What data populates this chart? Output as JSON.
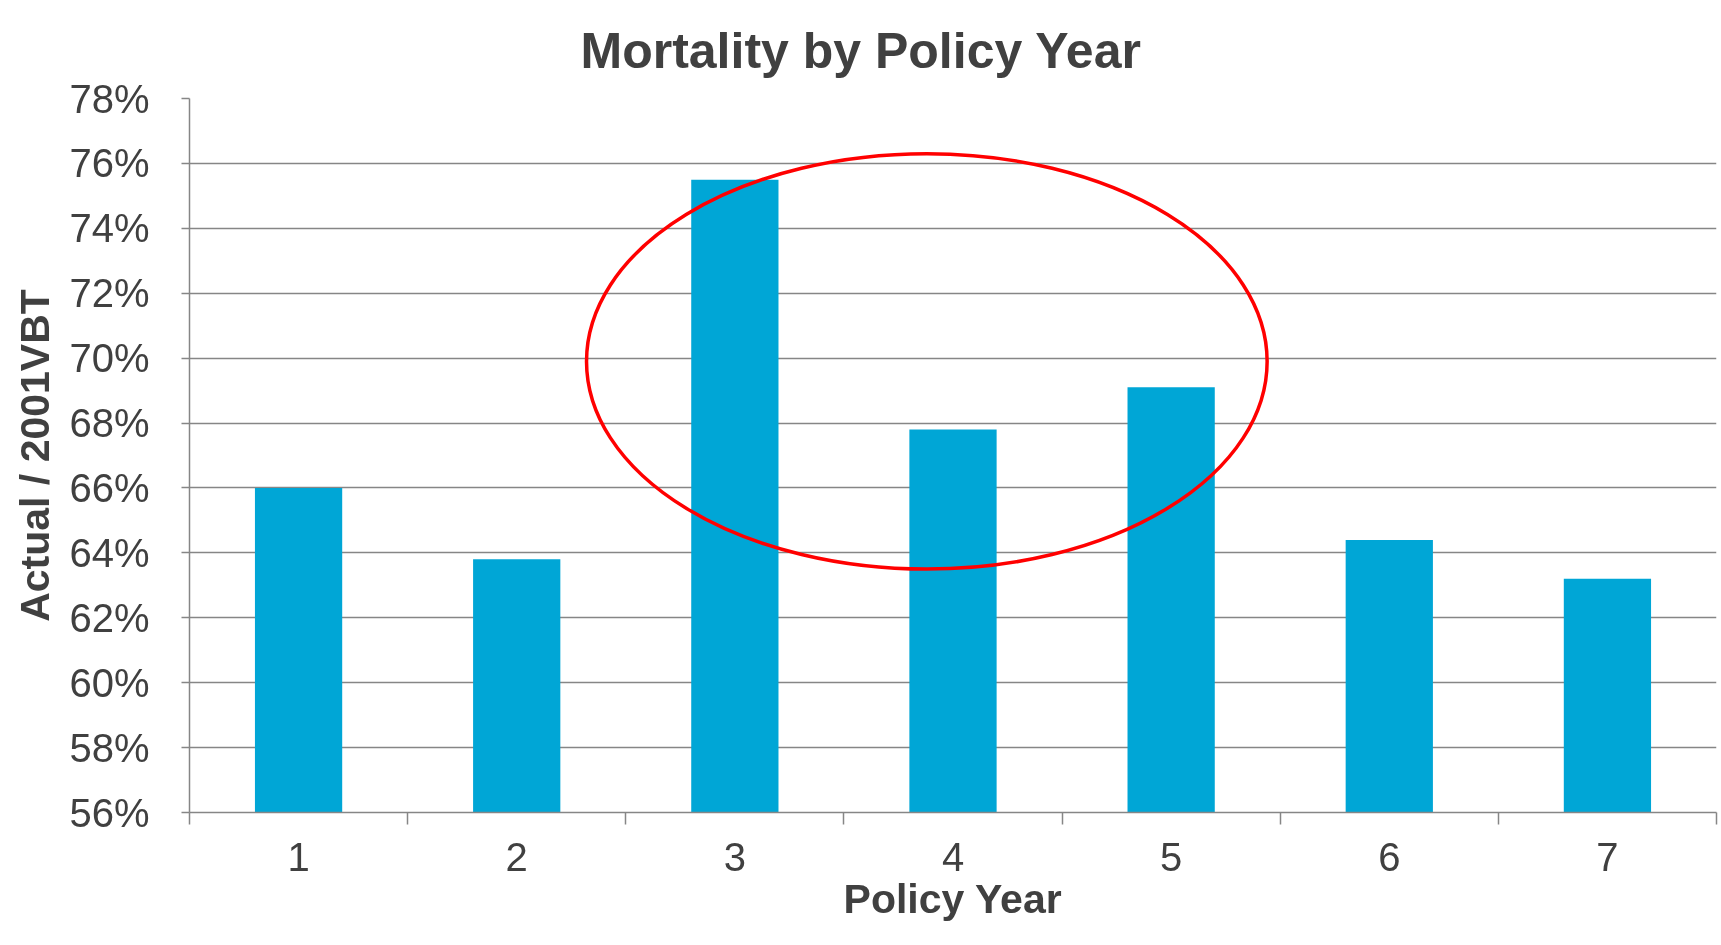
{
  "chart_data": {
    "type": "bar",
    "title": "Mortality by Policy Year",
    "xlabel": "Policy Year",
    "ylabel": "Actual / 2001VBT",
    "categories": [
      "1",
      "2",
      "3",
      "4",
      "5",
      "6",
      "7"
    ],
    "values": [
      66.0,
      63.8,
      75.5,
      67.8,
      69.1,
      64.4,
      63.2
    ],
    "color": "#00a6d6",
    "ylim": [
      56,
      78
    ],
    "yticks": [
      {
        "value": 56,
        "label": "56%"
      },
      {
        "value": 58,
        "label": "58%"
      },
      {
        "value": 60,
        "label": "60%"
      },
      {
        "value": 62,
        "label": "62%"
      },
      {
        "value": 64,
        "label": "64%"
      },
      {
        "value": 66,
        "label": "66%"
      },
      {
        "value": 68,
        "label": "68%"
      },
      {
        "value": 70,
        "label": "70%"
      },
      {
        "value": 72,
        "label": "72%"
      },
      {
        "value": 74,
        "label": "74%"
      },
      {
        "value": 76,
        "label": "76%"
      },
      {
        "value": 78,
        "label": "78%"
      }
    ],
    "grid": "y"
  }
}
